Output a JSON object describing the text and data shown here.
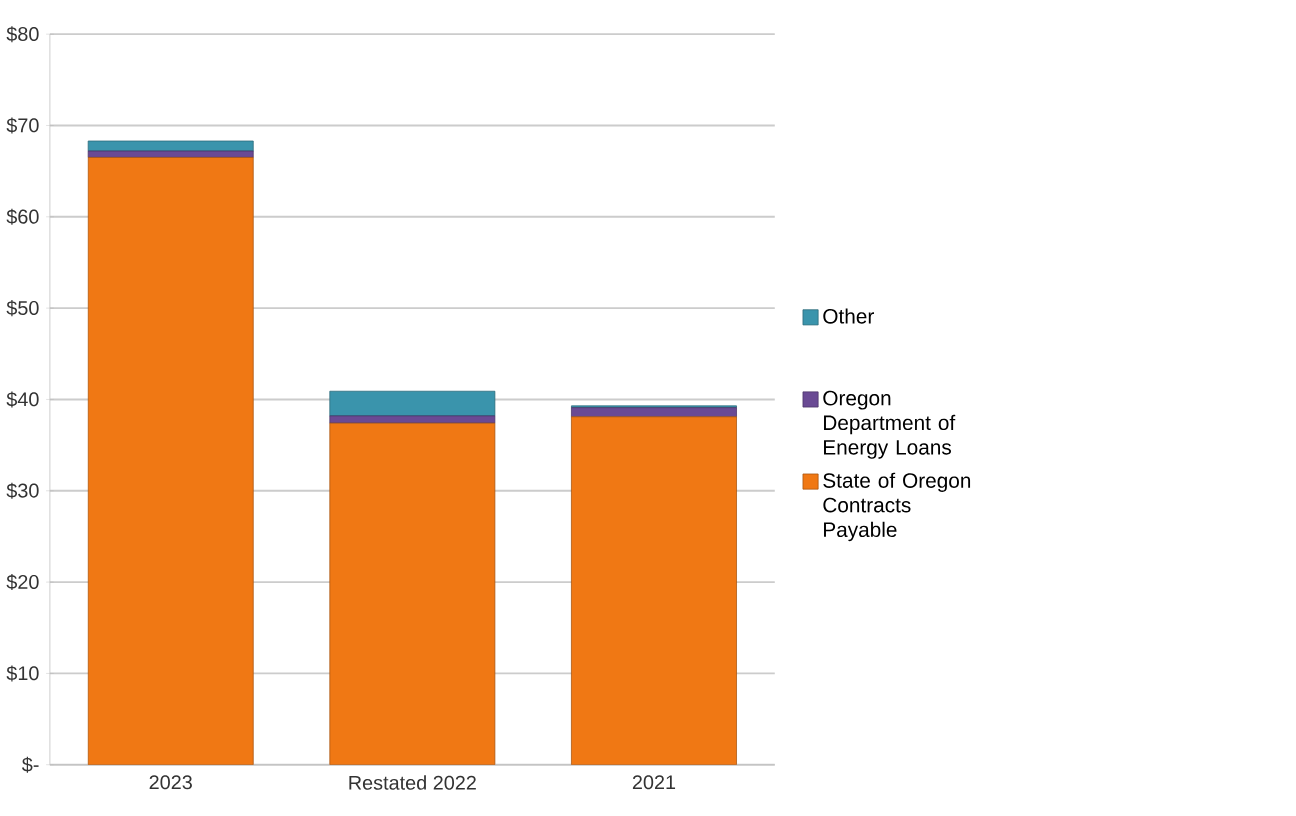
{
  "chart_data": {
    "type": "bar",
    "stacked": true,
    "categories": [
      "2023",
      "Restated 2022",
      "2021"
    ],
    "series": [
      {
        "name": "State of Oregon Contracts Payable",
        "color": "#f07814",
        "values": [
          66.5,
          37.4,
          38.1
        ]
      },
      {
        "name": "Oregon Department of Energy Loans",
        "color": "#6a4a94",
        "values": [
          0.7,
          0.8,
          1.0
        ]
      },
      {
        "name": "Other",
        "color": "#3a94ac",
        "values": [
          1.1,
          2.7,
          0.2
        ]
      }
    ],
    "ylim": [
      0,
      80
    ],
    "yticks": [
      {
        "value": 0,
        "label": "$-"
      },
      {
        "value": 10,
        "label": "$10"
      },
      {
        "value": 20,
        "label": "$20"
      },
      {
        "value": 30,
        "label": "$30"
      },
      {
        "value": 40,
        "label": "$40"
      },
      {
        "value": 50,
        "label": "$50"
      },
      {
        "value": 60,
        "label": "$60"
      },
      {
        "value": 70,
        "label": "$70"
      },
      {
        "value": 80,
        "label": "$80"
      }
    ],
    "grid": "y",
    "legend": "right"
  }
}
